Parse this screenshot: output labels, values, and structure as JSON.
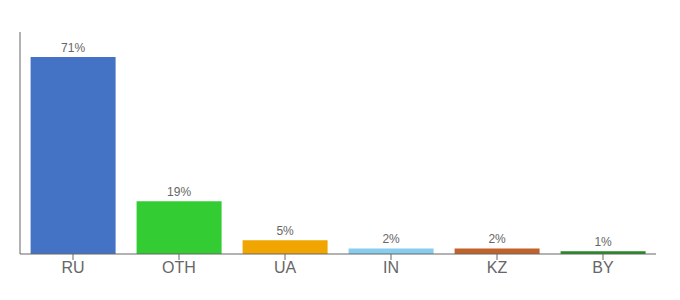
{
  "chart_data": {
    "type": "bar",
    "categories": [
      "RU",
      "OTH",
      "UA",
      "IN",
      "KZ",
      "BY"
    ],
    "values": [
      71,
      19,
      5,
      2,
      2,
      1
    ],
    "value_labels": [
      "71%",
      "19%",
      "5%",
      "2%",
      "2%",
      "1%"
    ],
    "colors": [
      "#4472c4",
      "#33cc33",
      "#f0a500",
      "#88ccee",
      "#c0622a",
      "#228b22"
    ],
    "ylim": [
      0,
      80
    ],
    "grid": false,
    "data_labels": true,
    "tick_labels": "x"
  }
}
